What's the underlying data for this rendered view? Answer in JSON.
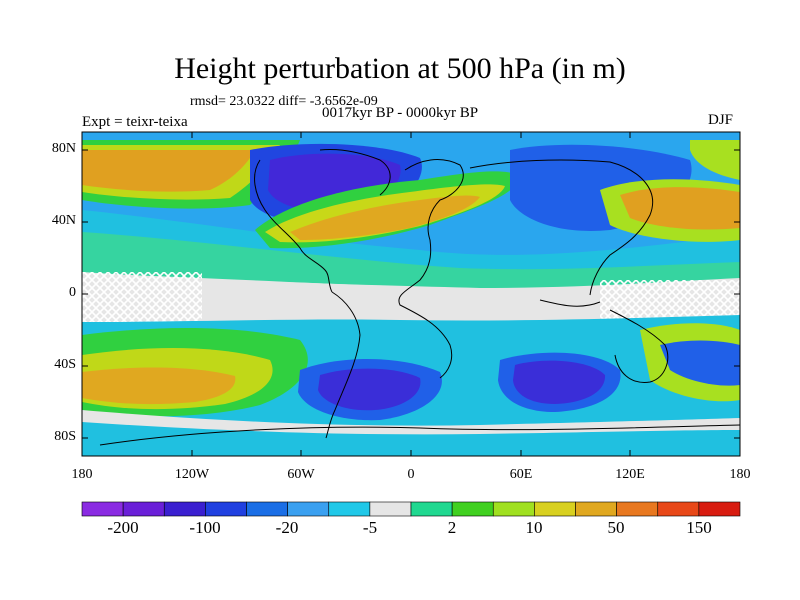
{
  "title": "Height perturbation at 500 hPa (in m)",
  "stats": "rmsd= 23.0322 diff= -3.6562e-09",
  "subtitle": "0017kyr BP - 0000kyr BP",
  "experiment": "Expt = teixr-teixa",
  "season": "DJF",
  "map": {
    "lat_ticks": [
      "80N",
      "40N",
      "0",
      "40S",
      "80S"
    ],
    "lon_ticks": [
      "180",
      "120W",
      "60W",
      "0",
      "60E",
      "120E",
      "180"
    ]
  },
  "colorbar": {
    "labels": [
      "-200",
      "-100",
      "-20",
      "-5",
      "2",
      "10",
      "50",
      "150"
    ],
    "colors": [
      "#8a2be2",
      "#6a1fd8",
      "#3a1fd0",
      "#2040e0",
      "#1a6ee6",
      "#3aa0f0",
      "#20c8e8",
      "#e6e6e6",
      "#20d890",
      "#40d020",
      "#a0e020",
      "#d8d020",
      "#e0a820",
      "#e87820",
      "#e84818",
      "#d81c10"
    ]
  },
  "colors": {
    "neutral": "#e6e6e6",
    "coast": "#000000"
  }
}
